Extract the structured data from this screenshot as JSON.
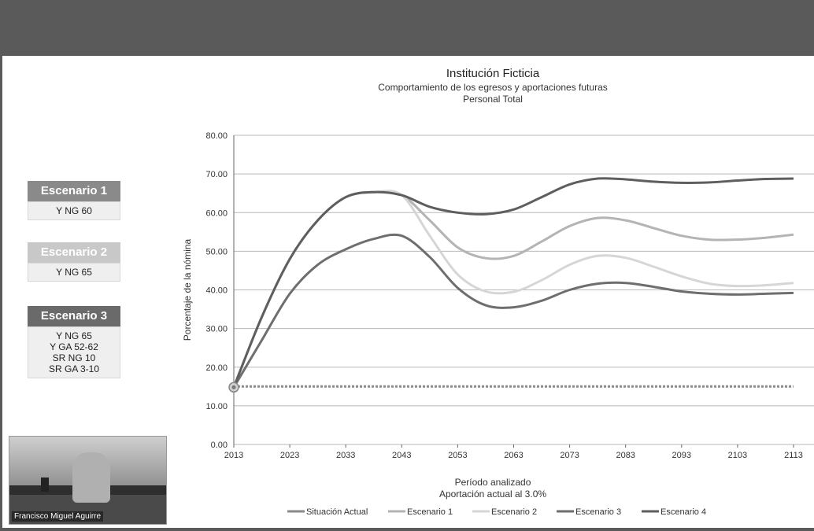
{
  "scenarios": [
    {
      "title": "Escenario 1",
      "color": "#8a8a8a",
      "lines": [
        "Y NG 60"
      ]
    },
    {
      "title": "Escenario 2",
      "color": "#c8c8c8",
      "lines": [
        "Y NG 65"
      ]
    },
    {
      "title": "Escenario 3",
      "color": "#6a6a6a",
      "lines": [
        "Y NG 65",
        "Y GA 52-62",
        "SR NG 10",
        "SR GA 3-10"
      ]
    }
  ],
  "video": {
    "participant_name": "Francisco Miguel Aguirre"
  },
  "chart_data": {
    "type": "line",
    "title": "Institución Ficticia",
    "subtitle": "Comportamiento de los egresos y aportaciones futuras",
    "subtitle2": "Personal Total",
    "ylabel": "Porcentaje de la nómina",
    "xlabel": "Período analizado",
    "xlabel2": "Aportación actual al 3.0%",
    "xlim": [
      2013,
      2113
    ],
    "ylim": [
      0,
      80
    ],
    "x_ticks": [
      "2013",
      "2023",
      "2033",
      "2043",
      "2053",
      "2063",
      "2073",
      "2083",
      "2093",
      "2103",
      "2113"
    ],
    "y_ticks": [
      "0.00",
      "10.00",
      "20.00",
      "30.00",
      "40.00",
      "50.00",
      "60.00",
      "70.00",
      "80.00"
    ],
    "grid": true,
    "legend_position": "bottom",
    "x": [
      2013,
      2018,
      2023,
      2028,
      2033,
      2038,
      2043,
      2048,
      2053,
      2058,
      2063,
      2068,
      2073,
      2078,
      2083,
      2088,
      2093,
      2098,
      2103,
      2108,
      2113
    ],
    "series": [
      {
        "name": "Situación Actual",
        "color": "#8a8a8a",
        "style": "dotted",
        "values": [
          15,
          15,
          15,
          15,
          15,
          15,
          15,
          15,
          15,
          15,
          15,
          15,
          15,
          15,
          15,
          15,
          15,
          15,
          15,
          15,
          15
        ]
      },
      {
        "name": "Escenario 1",
        "color": "#b4b4b4",
        "style": "solid",
        "values": [
          14.8,
          33,
          48,
          58,
          64,
          65.3,
          64.5,
          58,
          51,
          48.2,
          48.8,
          52.5,
          56.5,
          58.6,
          58,
          56,
          54,
          53,
          53,
          53.5,
          54.3
        ]
      },
      {
        "name": "Escenario 2",
        "color": "#d6d6d6",
        "style": "solid",
        "values": [
          14.8,
          33,
          48,
          58,
          64,
          65.3,
          64.5,
          54,
          44,
          39.6,
          39.5,
          42.5,
          46.5,
          48.8,
          48.3,
          46,
          43.5,
          41.6,
          41,
          41.2,
          41.8
        ]
      },
      {
        "name": "Escenario 3",
        "color": "#6e6e6e",
        "style": "solid",
        "values": [
          14.8,
          27,
          39,
          46.5,
          50.5,
          53.2,
          54,
          48.5,
          40.5,
          36,
          35.5,
          37.2,
          40,
          41.6,
          41.8,
          40.8,
          39.6,
          39,
          38.8,
          39,
          39.2
        ]
      },
      {
        "name": "Escenario 4",
        "color": "#5e5e5e",
        "style": "solid",
        "values": [
          14.8,
          33,
          48,
          58,
          64,
          65.3,
          64.5,
          61.5,
          60,
          59.6,
          60.8,
          64,
          67.3,
          68.8,
          68.6,
          68,
          67.7,
          67.8,
          68.3,
          68.7,
          68.8
        ]
      }
    ]
  }
}
